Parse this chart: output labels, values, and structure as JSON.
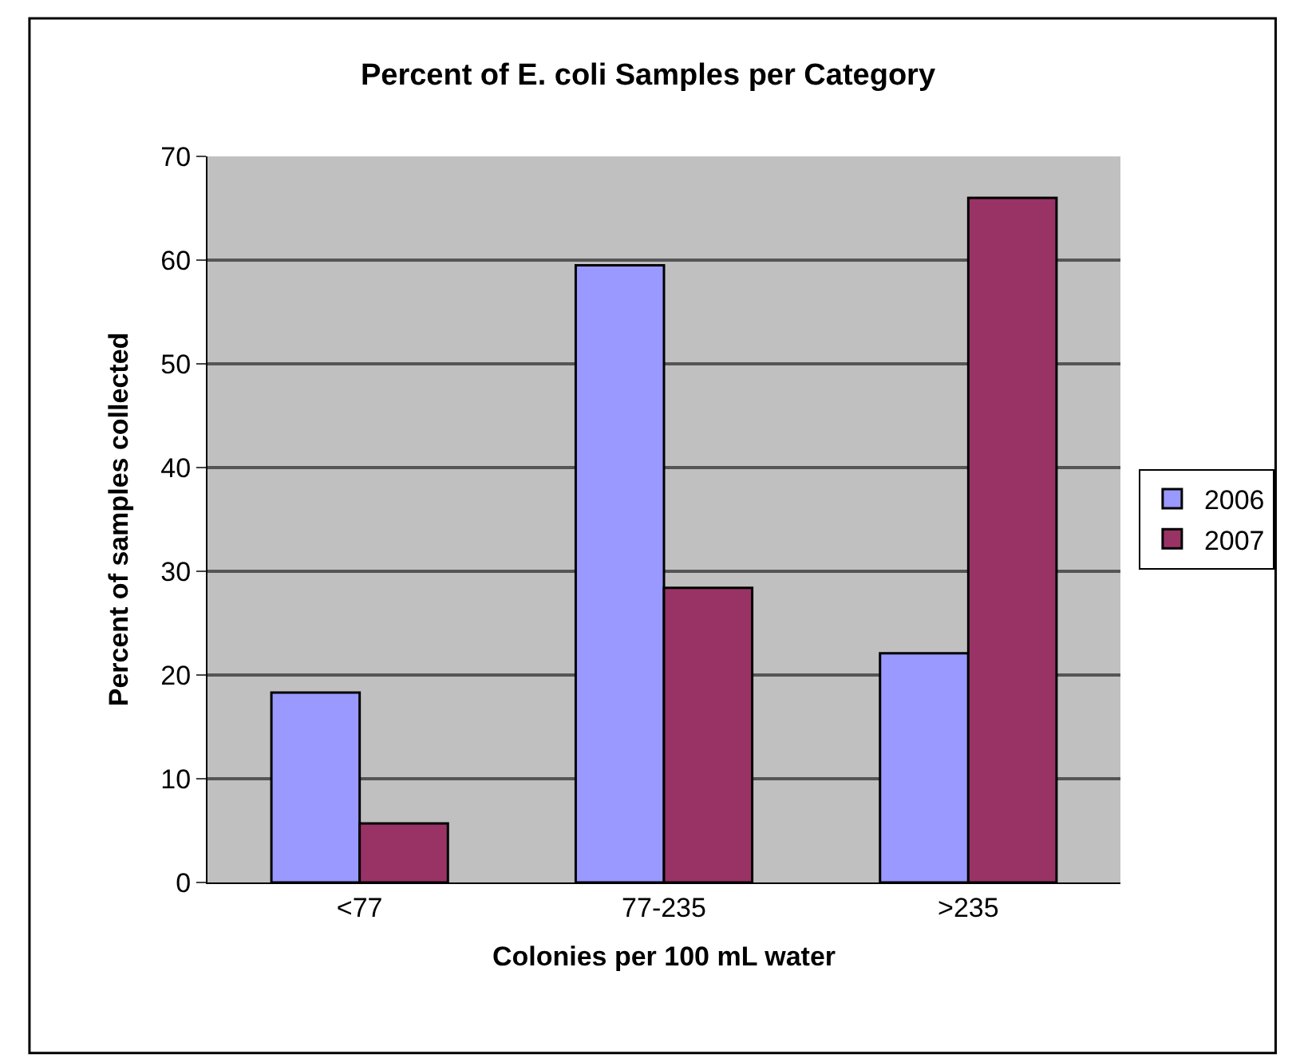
{
  "chart_data": {
    "type": "bar",
    "title": "Percent of E. coli Samples per Category",
    "xlabel": "Colonies per 100 mL water",
    "ylabel": "Percent of samples collected",
    "categories": [
      "<77",
      "77-235",
      ">235"
    ],
    "series": [
      {
        "name": "2006",
        "color": "#9999ff",
        "values": [
          18.3,
          59.5,
          22.1
        ]
      },
      {
        "name": "2007",
        "color": "#993366",
        "values": [
          5.7,
          28.4,
          66.0
        ]
      }
    ],
    "ylim": [
      0,
      70
    ],
    "yticks": [
      0,
      10,
      20,
      30,
      40,
      50,
      60,
      70
    ],
    "grid": "y",
    "legend": "right"
  }
}
